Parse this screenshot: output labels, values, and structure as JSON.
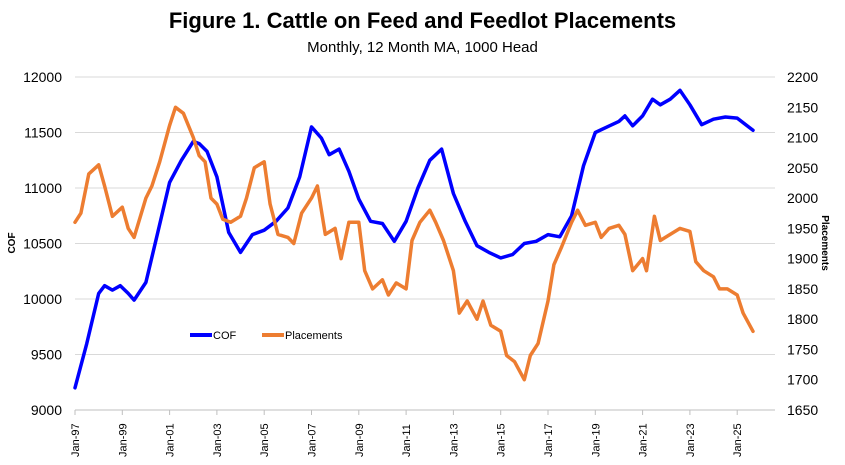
{
  "chart_data": {
    "type": "line",
    "title": "Figure 1. Cattle on Feed and Feedlot Placements",
    "subtitle": "Monthly, 12 Month MA, 1000 Head",
    "ylabel": "COF",
    "y2label": "Placements",
    "ylim": [
      9000,
      12000
    ],
    "y2lim": [
      1650,
      2200
    ],
    "yticks": [
      9000,
      9500,
      10000,
      10500,
      11000,
      11500,
      12000
    ],
    "y2ticks": [
      1650,
      1700,
      1750,
      1800,
      1850,
      1900,
      1950,
      2000,
      2050,
      2100,
      2150,
      2200
    ],
    "xticks": [
      "Jan-97",
      "Jan-99",
      "Jan-01",
      "Jan-03",
      "Jan-05",
      "Jan-07",
      "Jan-09",
      "Jan-11",
      "Jan-13",
      "Jan-15",
      "Jan-17",
      "Jan-19",
      "Jan-21",
      "Jan-23",
      "Jan-25"
    ],
    "grid": true,
    "legend": "inside-bottom-left",
    "series": [
      {
        "name": "COF",
        "axis": "left",
        "color": "#0000FF",
        "points": [
          [
            "1997-01",
            9200
          ],
          [
            "1997-07",
            9600
          ],
          [
            "1998-01",
            10050
          ],
          [
            "1998-04",
            10120
          ],
          [
            "1998-08",
            10080
          ],
          [
            "1998-12",
            10120
          ],
          [
            "1999-04",
            10050
          ],
          [
            "1999-07",
            9990
          ],
          [
            "2000-01",
            10150
          ],
          [
            "2000-07",
            10600
          ],
          [
            "2001-01",
            11050
          ],
          [
            "2001-07",
            11250
          ],
          [
            "2002-01",
            11420
          ],
          [
            "2002-04",
            11400
          ],
          [
            "2002-08",
            11330
          ],
          [
            "2003-01",
            11100
          ],
          [
            "2003-07",
            10600
          ],
          [
            "2004-01",
            10420
          ],
          [
            "2004-07",
            10580
          ],
          [
            "2005-01",
            10620
          ],
          [
            "2005-07",
            10700
          ],
          [
            "2006-01",
            10820
          ],
          [
            "2006-07",
            11100
          ],
          [
            "2007-01",
            11550
          ],
          [
            "2007-06",
            11450
          ],
          [
            "2007-10",
            11300
          ],
          [
            "2008-03",
            11350
          ],
          [
            "2008-08",
            11150
          ],
          [
            "2009-01",
            10900
          ],
          [
            "2009-07",
            10700
          ],
          [
            "2010-01",
            10680
          ],
          [
            "2010-07",
            10520
          ],
          [
            "2011-01",
            10700
          ],
          [
            "2011-07",
            11000
          ],
          [
            "2012-01",
            11250
          ],
          [
            "2012-07",
            11350
          ],
          [
            "2013-01",
            10950
          ],
          [
            "2013-07",
            10700
          ],
          [
            "2014-01",
            10480
          ],
          [
            "2014-07",
            10420
          ],
          [
            "2015-01",
            10370
          ],
          [
            "2015-07",
            10400
          ],
          [
            "2016-01",
            10500
          ],
          [
            "2016-07",
            10520
          ],
          [
            "2017-01",
            10580
          ],
          [
            "2017-07",
            10560
          ],
          [
            "2018-01",
            10750
          ],
          [
            "2018-07",
            11200
          ],
          [
            "2019-01",
            11500
          ],
          [
            "2019-07",
            11550
          ],
          [
            "2020-01",
            11600
          ],
          [
            "2020-04",
            11650
          ],
          [
            "2020-08",
            11560
          ],
          [
            "2021-01",
            11650
          ],
          [
            "2021-06",
            11800
          ],
          [
            "2021-10",
            11750
          ],
          [
            "2022-03",
            11800
          ],
          [
            "2022-08",
            11880
          ],
          [
            "2023-01",
            11750
          ],
          [
            "2023-07",
            11570
          ],
          [
            "2024-01",
            11620
          ],
          [
            "2024-07",
            11640
          ],
          [
            "2025-01",
            11630
          ],
          [
            "2025-09",
            11520
          ]
        ]
      },
      {
        "name": "Placements",
        "axis": "right",
        "color": "#ED7D31",
        "points": [
          [
            "1997-01",
            1960
          ],
          [
            "1997-04",
            1975
          ],
          [
            "1997-08",
            2040
          ],
          [
            "1998-01",
            2055
          ],
          [
            "1998-04",
            2020
          ],
          [
            "1998-08",
            1970
          ],
          [
            "1999-01",
            1985
          ],
          [
            "1999-04",
            1950
          ],
          [
            "1999-07",
            1935
          ],
          [
            "2000-01",
            2000
          ],
          [
            "2000-04",
            2020
          ],
          [
            "2000-08",
            2060
          ],
          [
            "2001-01",
            2120
          ],
          [
            "2001-04",
            2150
          ],
          [
            "2001-08",
            2140
          ],
          [
            "2002-01",
            2100
          ],
          [
            "2002-04",
            2070
          ],
          [
            "2002-07",
            2060
          ],
          [
            "2002-10",
            2000
          ],
          [
            "2003-01",
            1990
          ],
          [
            "2003-04",
            1965
          ],
          [
            "2003-08",
            1960
          ],
          [
            "2004-01",
            1970
          ],
          [
            "2004-04",
            2000
          ],
          [
            "2004-08",
            2050
          ],
          [
            "2005-01",
            2060
          ],
          [
            "2005-04",
            1990
          ],
          [
            "2005-08",
            1940
          ],
          [
            "2006-01",
            1935
          ],
          [
            "2006-04",
            1925
          ],
          [
            "2006-08",
            1975
          ],
          [
            "2007-01",
            2000
          ],
          [
            "2007-04",
            2020
          ],
          [
            "2007-08",
            1940
          ],
          [
            "2008-01",
            1950
          ],
          [
            "2008-04",
            1900
          ],
          [
            "2008-08",
            1960
          ],
          [
            "2009-01",
            1960
          ],
          [
            "2009-04",
            1880
          ],
          [
            "2009-08",
            1850
          ],
          [
            "2010-01",
            1865
          ],
          [
            "2010-04",
            1840
          ],
          [
            "2010-08",
            1860
          ],
          [
            "2011-01",
            1850
          ],
          [
            "2011-04",
            1930
          ],
          [
            "2011-08",
            1960
          ],
          [
            "2012-01",
            1980
          ],
          [
            "2012-04",
            1960
          ],
          [
            "2012-08",
            1930
          ],
          [
            "2013-01",
            1880
          ],
          [
            "2013-04",
            1810
          ],
          [
            "2013-08",
            1830
          ],
          [
            "2014-01",
            1800
          ],
          [
            "2014-04",
            1830
          ],
          [
            "2014-08",
            1790
          ],
          [
            "2015-01",
            1780
          ],
          [
            "2015-04",
            1740
          ],
          [
            "2015-08",
            1730
          ],
          [
            "2016-01",
            1700
          ],
          [
            "2016-04",
            1740
          ],
          [
            "2016-08",
            1760
          ],
          [
            "2017-01",
            1830
          ],
          [
            "2017-04",
            1890
          ],
          [
            "2017-08",
            1920
          ],
          [
            "2018-01",
            1960
          ],
          [
            "2018-04",
            1980
          ],
          [
            "2018-08",
            1955
          ],
          [
            "2019-01",
            1960
          ],
          [
            "2019-04",
            1935
          ],
          [
            "2019-08",
            1950
          ],
          [
            "2020-01",
            1955
          ],
          [
            "2020-04",
            1940
          ],
          [
            "2020-08",
            1880
          ],
          [
            "2021-01",
            1900
          ],
          [
            "2021-03",
            1880
          ],
          [
            "2021-07",
            1970
          ],
          [
            "2021-10",
            1930
          ],
          [
            "2022-03",
            1940
          ],
          [
            "2022-08",
            1950
          ],
          [
            "2023-01",
            1945
          ],
          [
            "2023-04",
            1895
          ],
          [
            "2023-08",
            1880
          ],
          [
            "2024-01",
            1870
          ],
          [
            "2024-04",
            1850
          ],
          [
            "2024-08",
            1850
          ],
          [
            "2025-01",
            1840
          ],
          [
            "2025-04",
            1810
          ],
          [
            "2025-09",
            1780
          ]
        ]
      }
    ]
  }
}
